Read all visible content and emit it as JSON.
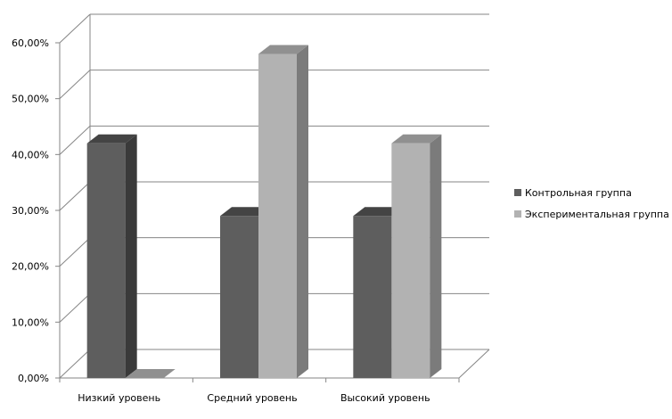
{
  "chart_data": {
    "type": "bar",
    "categories": [
      "Низкий уровень",
      "Средний уровень",
      "Высокий уровень"
    ],
    "series": [
      {
        "name": "Контрольная группа",
        "values": [
          42,
          29,
          29
        ]
      },
      {
        "name": "Экспериментальная группа",
        "values": [
          0,
          58,
          42
        ]
      }
    ],
    "y_ticks": [
      "0,00%",
      "10,00%",
      "20,00%",
      "30,00%",
      "40,00%",
      "50,00%",
      "60,00%"
    ],
    "ylim": [
      0,
      60
    ],
    "grid": true,
    "legend": "right",
    "style": "3d-clustered-column",
    "colors": {
      "series_0": {
        "front": "#5e5e5e",
        "side": "#3a3a3a",
        "top": "#444444"
      },
      "series_1": {
        "front": "#b2b2b2",
        "side": "#7b7b7b",
        "top": "#909090"
      },
      "axis": "#868686",
      "grid": "#868686"
    }
  }
}
